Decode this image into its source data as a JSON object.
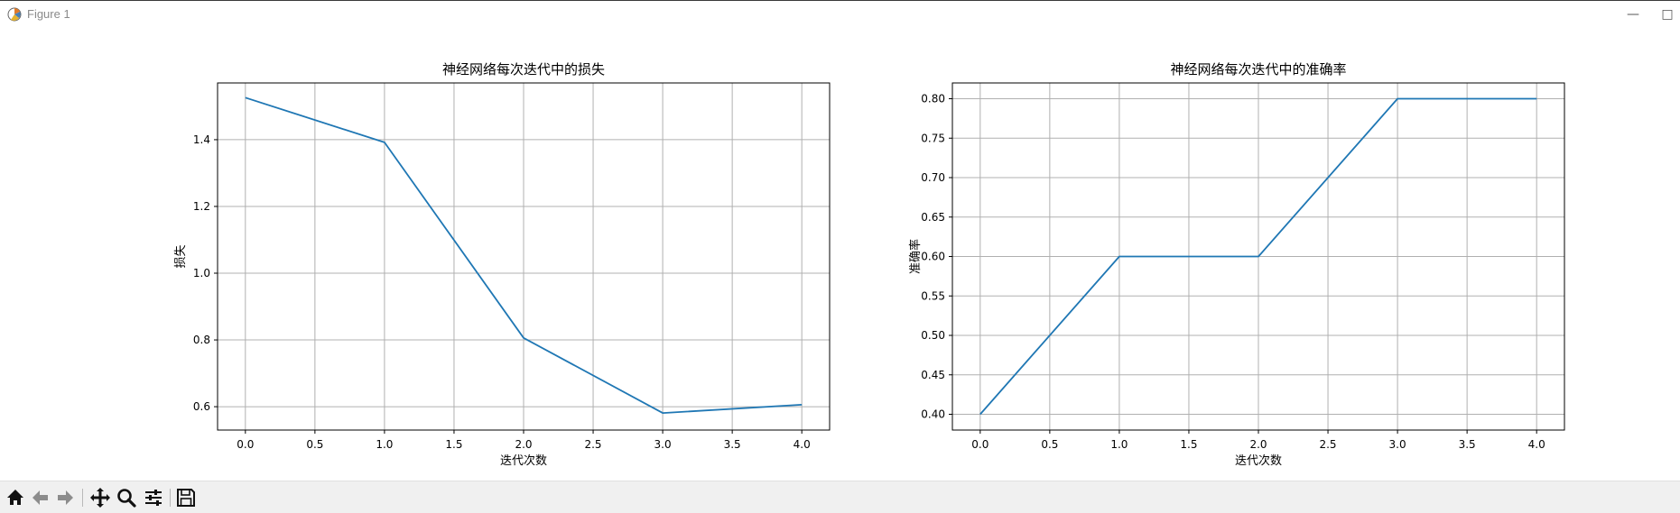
{
  "window": {
    "title": "Figure 1",
    "icon": "matplotlib-icon"
  },
  "toolbar": {
    "buttons": [
      "home-icon",
      "back-arrow-icon",
      "forward-arrow-icon",
      "pan-icon",
      "zoom-icon",
      "configure-subplots-icon",
      "save-icon"
    ]
  },
  "colors": {
    "line": "#1f77b4",
    "grid": "#b0b0b0",
    "toolbar_bg": "#f0f0f0"
  },
  "chart_data": [
    {
      "type": "line",
      "title": "神经网络每次迭代中的损失",
      "xlabel": "迭代次数",
      "ylabel": "损失",
      "x": [
        0,
        1,
        2,
        3,
        4
      ],
      "series": [
        {
          "values": [
            1.526,
            1.392,
            0.806,
            0.581,
            0.606
          ]
        }
      ],
      "xlim": [
        -0.2,
        4.2
      ],
      "ylim": [
        0.53,
        1.57
      ],
      "xticks": [
        0.0,
        0.5,
        1.0,
        1.5,
        2.0,
        2.5,
        3.0,
        3.5,
        4.0
      ],
      "xticklabels": [
        "0.0",
        "0.5",
        "1.0",
        "1.5",
        "2.0",
        "2.5",
        "3.0",
        "3.5",
        "4.0"
      ],
      "yticks": [
        0.6,
        0.8,
        1.0,
        1.2,
        1.4
      ],
      "yticklabels": [
        "0.6",
        "0.8",
        "1.0",
        "1.2",
        "1.4"
      ],
      "grid": true
    },
    {
      "type": "line",
      "title": "神经网络每次迭代中的准确率",
      "xlabel": "迭代次数",
      "ylabel": "准确率",
      "x": [
        0,
        1,
        2,
        3,
        4
      ],
      "series": [
        {
          "values": [
            0.4,
            0.6,
            0.6,
            0.8,
            0.8
          ]
        }
      ],
      "xlim": [
        -0.2,
        4.2
      ],
      "ylim": [
        0.38,
        0.82
      ],
      "xticks": [
        0.0,
        0.5,
        1.0,
        1.5,
        2.0,
        2.5,
        3.0,
        3.5,
        4.0
      ],
      "xticklabels": [
        "0.0",
        "0.5",
        "1.0",
        "1.5",
        "2.0",
        "2.5",
        "3.0",
        "3.5",
        "4.0"
      ],
      "yticks": [
        0.4,
        0.45,
        0.5,
        0.55,
        0.6,
        0.65,
        0.7,
        0.75,
        0.8
      ],
      "yticklabels": [
        "0.40",
        "0.45",
        "0.50",
        "0.55",
        "0.60",
        "0.65",
        "0.70",
        "0.75",
        "0.80"
      ],
      "grid": true
    }
  ]
}
